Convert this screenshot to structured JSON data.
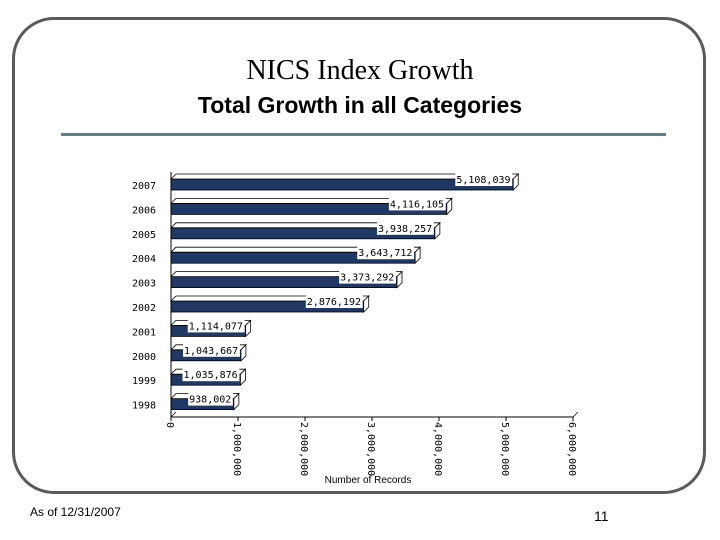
{
  "slide": {
    "title": "NICS Index Growth",
    "subtitle": "Total Growth in all Categories",
    "footer_date": "As of 12/31/2007",
    "page_number": "11"
  },
  "chart_data": {
    "type": "bar",
    "orientation": "horizontal",
    "categories": [
      "2007",
      "2006",
      "2005",
      "2004",
      "2003",
      "2002",
      "2001",
      "2000",
      "1999",
      "1998"
    ],
    "values": [
      5108039,
      4116105,
      3938257,
      3643712,
      3373292,
      2876192,
      1114077,
      1043667,
      1035876,
      938002
    ],
    "data_labels": [
      "5,108,039",
      "4,116,105",
      "3,938,257",
      "3,643,712",
      "3,373,292",
      "2,876,192",
      "1,114,077",
      "1,043,667",
      "1,035,876",
      "938,002"
    ],
    "xlabel": "Number of Records",
    "xlim": [
      0,
      6000000
    ],
    "x_ticks": [
      0,
      1000000,
      2000000,
      3000000,
      4000000,
      5000000,
      6000000
    ],
    "x_tick_labels": [
      "0",
      "1,000,000",
      "2,000,000",
      "3,000,000",
      "4,000,000",
      "5,000,000",
      "6,000,000"
    ],
    "bar_color": "#1f3864",
    "bar_side_color": "#ffffff",
    "grid": false,
    "legend": false
  }
}
